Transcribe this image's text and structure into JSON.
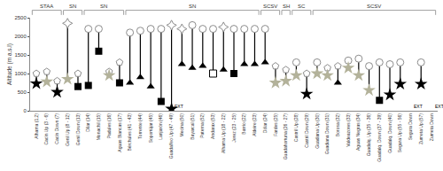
{
  "chart_data": {
    "type": "scatter",
    "y_label": "Altitude (m a.s.l)",
    "ylim": [
      0,
      2500
    ],
    "yticks": [
      0,
      500,
      1000,
      1500,
      2000,
      2500
    ],
    "grid": false,
    "categories": [
      "Alhama (1,2)",
      "Cacín Up (3 - 6)",
      "Cacín Down (7)",
      "Genil Up (8 - 12)",
      "Genil Down (13)",
      "Dílar (14)",
      "Monachil (15)",
      "Padules (16)",
      "Aguas Blancas (17)",
      "Bérchules (41 - 43)",
      "Torrente (44)",
      "Soportújar (45)",
      "Lanjarón (46)",
      "Guadalfeo Up (47 - 49)",
      "Mecina (50)",
      "Bayarcal (51)",
      "Paterna (52)",
      "Andarax (53)",
      "Alhama Up (18 - 22)",
      "Jerez (23 - 25)",
      "Barrio (22)",
      "Aldeire (23)",
      "Dólar (24)",
      "Fardes (25)",
      "Guadahortuna (26 - 27)",
      "Castril Up (28)",
      "Castril Down (29)",
      "Guadiana Up (30)",
      "Guadiana Down (31)",
      "Borosa (32)",
      "Valdeazores (33)",
      "Aguas Negras (34)",
      "Guadalq. Up (35 - 36)",
      "Guadalq. Down (37 - 39)",
      "Guadalq. Down (40)",
      "Segura Up (55 - 56)",
      "Segura Down",
      "Zumeta Up (57)",
      "Zumeta Down"
    ],
    "lower": [
      {
        "marker": "star",
        "color": "#000000",
        "values": [
          730,
          null,
          500,
          null,
          null,
          null,
          null,
          null,
          null,
          null,
          null,
          null,
          null,
          50,
          null,
          null,
          null,
          null,
          null,
          null,
          null,
          null,
          null,
          null,
          null,
          null,
          450,
          null,
          null,
          null,
          null,
          null,
          null,
          null,
          430,
          720,
          null,
          720,
          null
        ]
      },
      {
        "marker": "star",
        "color": "#b3b29a",
        "values": [
          null,
          780,
          null,
          850,
          null,
          null,
          null,
          950,
          null,
          null,
          null,
          null,
          null,
          null,
          null,
          null,
          null,
          null,
          null,
          null,
          null,
          null,
          null,
          750,
          800,
          950,
          null,
          1000,
          950,
          null,
          1150,
          950,
          550,
          null,
          null,
          null,
          null,
          null,
          null
        ]
      },
      {
        "marker": "triangle",
        "color": "#000000",
        "values": [
          null,
          null,
          null,
          null,
          null,
          null,
          null,
          null,
          null,
          750,
          900,
          650,
          null,
          null,
          1250,
          1150,
          1200,
          null,
          1100,
          null,
          1250,
          1250,
          1300,
          null,
          null,
          null,
          null,
          null,
          null,
          750,
          null,
          null,
          null,
          null,
          null,
          null,
          null,
          null,
          null
        ]
      },
      {
        "marker": "square",
        "color": "#000000",
        "values": [
          null,
          null,
          null,
          null,
          650,
          680,
          1600,
          null,
          750,
          null,
          null,
          null,
          250,
          null,
          null,
          null,
          null,
          null,
          null,
          1000,
          null,
          null,
          null,
          null,
          null,
          null,
          null,
          null,
          null,
          null,
          null,
          null,
          null,
          280,
          null,
          null,
          null,
          null,
          null
        ]
      },
      {
        "marker": "square",
        "color": "#ffffff",
        "values": [
          null,
          null,
          null,
          null,
          null,
          null,
          null,
          null,
          null,
          null,
          null,
          null,
          null,
          null,
          null,
          null,
          null,
          1000,
          null,
          null,
          null,
          null,
          null,
          null,
          null,
          null,
          null,
          null,
          null,
          null,
          null,
          null,
          null,
          null,
          null,
          null,
          null,
          null,
          null
        ]
      }
    ],
    "upper": [
      {
        "marker": "house",
        "color": "#ffffff",
        "values": [
          1000,
          1050,
          800,
          null,
          1000,
          null,
          null,
          1050,
          1300,
          null,
          null,
          null,
          null,
          null,
          null,
          null,
          null,
          null,
          null,
          null,
          null,
          null,
          null,
          1200,
          1100,
          null,
          1000,
          null,
          1150,
          1200,
          null,
          null,
          null,
          null,
          null,
          null,
          null,
          null,
          null
        ]
      },
      {
        "marker": "cap",
        "color": "#ffffff",
        "values": [
          null,
          null,
          null,
          null,
          null,
          2200,
          2200,
          null,
          null,
          2100,
          2150,
          2200,
          2200,
          null,
          null,
          2300,
          2200,
          2200,
          null,
          2200,
          2200,
          2200,
          2200,
          null,
          null,
          1300,
          null,
          1300,
          null,
          null,
          1350,
          1400,
          1200,
          1300,
          1250,
          1300,
          null,
          1300,
          null
        ]
      },
      {
        "marker": "sparkle",
        "color": "#ffffff",
        "values": [
          null,
          null,
          null,
          2350,
          null,
          null,
          null,
          null,
          null,
          null,
          null,
          null,
          null,
          2300,
          2200,
          null,
          null,
          null,
          2250,
          null,
          null,
          null,
          null,
          null,
          null,
          null,
          null,
          null,
          null,
          null,
          null,
          null,
          null,
          null,
          null,
          null,
          null,
          null,
          null
        ]
      }
    ],
    "groups": [
      {
        "label": "STAA",
        "start": 0,
        "end": 2
      },
      {
        "label": "SN",
        "start": 3,
        "end": 4
      },
      {
        "label": "SN",
        "start": 5,
        "end": 8
      },
      {
        "label": "SN",
        "start": 9,
        "end": 21
      },
      {
        "label": "SCSV",
        "start": 22,
        "end": 23
      },
      {
        "label": "SH",
        "start": 24,
        "end": 24
      },
      {
        "label": "SC",
        "start": 25,
        "end": 26
      },
      {
        "label": "SCSV",
        "start": 27,
        "end": 38
      }
    ],
    "annotations": [
      {
        "text": "EXT",
        "index": 13
      },
      {
        "text": "EXT",
        "index": 36
      },
      {
        "text": "EXT",
        "index": 38
      }
    ]
  }
}
